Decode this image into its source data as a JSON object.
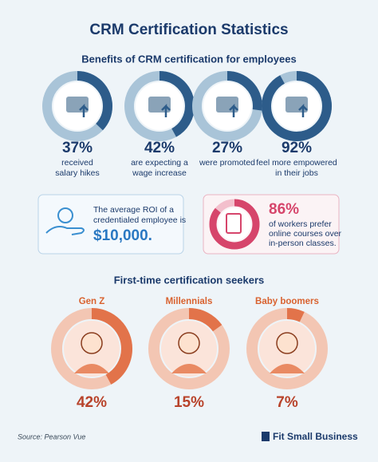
{
  "header": {
    "title": "CRM Certification Statistics",
    "subtitle": "Benefits of CRM certification for employees"
  },
  "benefits": [
    {
      "percent": {
        "value": 37,
        "label": "37%"
      },
      "lines": [
        "received",
        "salary hikes"
      ]
    },
    {
      "percent": {
        "value": 42,
        "label": "42%"
      },
      "lines": [
        "are expecting a",
        "wage increase"
      ]
    },
    {
      "percent": {
        "value": 27,
        "label": "27%"
      },
      "lines": [
        "were promoted"
      ]
    },
    {
      "percent": {
        "value": 92,
        "label": "92%"
      },
      "lines": [
        "feel more empowered",
        "in their jobs"
      ]
    }
  ],
  "roi": {
    "lines": [
      "The average ROI of a",
      "credentialed employee is"
    ],
    "amount": "$10,000."
  },
  "online": {
    "percent": {
      "value": 86,
      "label": "86%"
    },
    "lines": [
      "of workers prefer",
      "online courses over",
      "in-person classes."
    ]
  },
  "seekers": {
    "title": "First-time certification seekers",
    "groups": [
      {
        "name": "Gen Z",
        "percent": {
          "value": 42,
          "label": "42%"
        }
      },
      {
        "name": "Millennials",
        "percent": {
          "value": 15,
          "label": "15%"
        }
      },
      {
        "name": "Baby boomers",
        "percent": {
          "value": 7,
          "label": "7%"
        }
      }
    ]
  },
  "footer": {
    "source": "Source:  Pearson Vue",
    "brand": "Fit Small Business"
  }
}
